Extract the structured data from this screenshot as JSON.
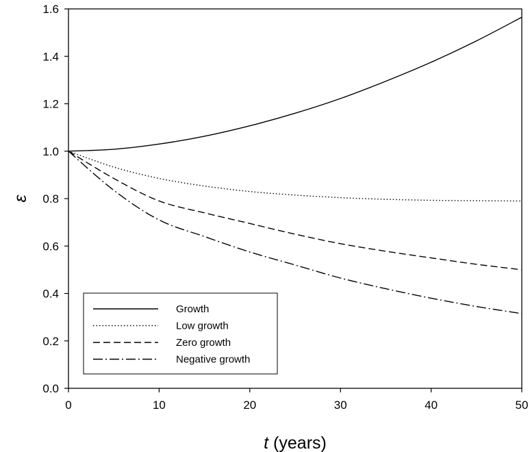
{
  "chart_data": {
    "type": "line",
    "xlabel": {
      "var": "t",
      "rest": " (years)"
    },
    "ylabel": "ε",
    "xlim": [
      0,
      50
    ],
    "ylim": [
      0,
      1.6
    ],
    "xticks": [
      {
        "value": 0,
        "label": "0"
      },
      {
        "value": 10,
        "label": "10"
      },
      {
        "value": 20,
        "label": "20"
      },
      {
        "value": 30,
        "label": "30"
      },
      {
        "value": 40,
        "label": "40"
      },
      {
        "value": 50,
        "label": "50"
      }
    ],
    "yticks": [
      {
        "value": 0,
        "label": "0.0"
      },
      {
        "value": 0.2,
        "label": "0.2"
      },
      {
        "value": 0.4,
        "label": "0.4"
      },
      {
        "value": 0.6,
        "label": "0.6"
      },
      {
        "value": 0.8,
        "label": "0.8"
      },
      {
        "value": 1.0,
        "label": "1.0"
      },
      {
        "value": 1.2,
        "label": "1.2"
      },
      {
        "value": 1.4,
        "label": "1.4"
      },
      {
        "value": 1.6,
        "label": "1.6"
      }
    ],
    "grid": false,
    "legend_position": "bottom-left",
    "x": [
      0,
      5,
      10,
      15,
      20,
      25,
      30,
      35,
      40,
      45,
      50
    ],
    "series": [
      {
        "name": "Growth",
        "style": "solid",
        "values": [
          1.0,
          1.008,
          1.03,
          1.063,
          1.107,
          1.16,
          1.222,
          1.295,
          1.375,
          1.465,
          1.565
        ]
      },
      {
        "name": "Low growth",
        "style": "dotted",
        "values": [
          1.0,
          0.933,
          0.885,
          0.853,
          0.83,
          0.815,
          0.804,
          0.797,
          0.793,
          0.791,
          0.79
        ]
      },
      {
        "name": "Zero growth",
        "style": "dashed",
        "values": [
          1.0,
          0.885,
          0.79,
          0.74,
          0.695,
          0.65,
          0.61,
          0.578,
          0.55,
          0.523,
          0.5
        ]
      },
      {
        "name": "Negative growth",
        "style": "dashdot",
        "values": [
          1.0,
          0.835,
          0.71,
          0.64,
          0.575,
          0.52,
          0.465,
          0.42,
          0.38,
          0.345,
          0.315
        ]
      }
    ],
    "colors": {
      "line": "#000000",
      "background": "#ffffff"
    }
  }
}
